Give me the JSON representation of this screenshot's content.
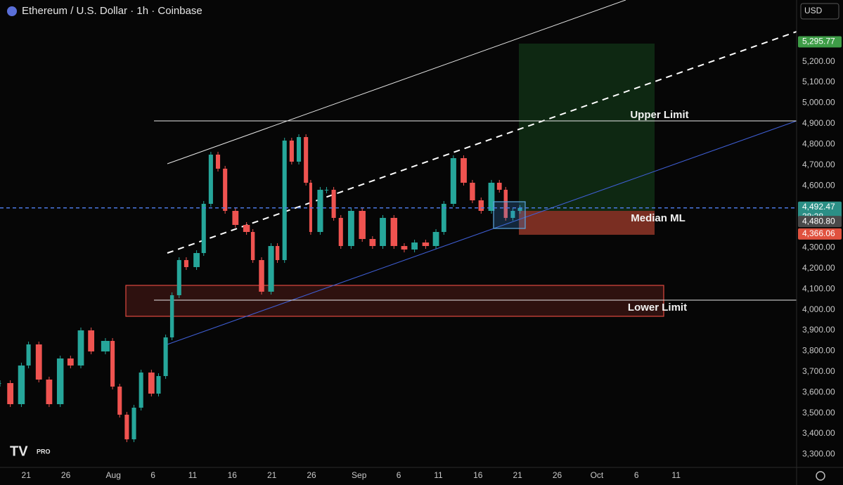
{
  "chart_data": {
    "type": "candlestick",
    "title": "Ethereum / U.S. Dollar · 1h · Coinbase",
    "currency": "USD",
    "logo_badge": "PRO",
    "x": [
      -3.3,
      -2.0,
      -0.6,
      0.3,
      1.6,
      2.9,
      4.3,
      5.6,
      6.9,
      8.2,
      10.0,
      10.9,
      11.8,
      12.7,
      13.6,
      14.5,
      15.8,
      16.7,
      17.6,
      18.4,
      19.3,
      20.2,
      21.5,
      22.4,
      23.3,
      24.2,
      25.1,
      26.4,
      27.8,
      28.6,
      29.7,
      30.9,
      31.7,
      32.6,
      33.5,
      34.4,
      35.3,
      35.9,
      37.1,
      37.9,
      38.8,
      39.7,
      41.0,
      42.4,
      43.7,
      45.0,
      46.4,
      47.7,
      49.0,
      50.4,
      51.7,
      52.7,
      53.9,
      55.2,
      56.3,
      57.4,
      58.7,
      59.7,
      60.5,
      61.4,
      62.3
    ],
    "values": [
      3645,
      3543,
      3730,
      3832,
      3662,
      3543,
      3764,
      3730,
      3900,
      3798,
      3849,
      3628,
      3492,
      3373,
      3526,
      3696,
      3594,
      3679,
      3866,
      4070,
      4240,
      4206,
      4274,
      4512,
      4750,
      4682,
      4478,
      4410,
      4376,
      4240,
      4087,
      4308,
      4240,
      4818,
      4716,
      4835,
      4614,
      4376,
      4580,
      4580,
      4444,
      4308,
      4478,
      4342,
      4308,
      4444,
      4308,
      4291,
      4325,
      4308,
      4376,
      4512,
      4733,
      4614,
      4529,
      4478,
      4614,
      4580,
      4444,
      4478,
      4492
    ],
    "up_color": "#26a69a",
    "down_color": "#ef5350",
    "xlim": [
      -3.3,
      97.2
    ],
    "xticks": [
      {
        "value": 0,
        "label": "21"
      },
      {
        "value": 5,
        "label": "26"
      },
      {
        "value": 11,
        "label": "Aug"
      },
      {
        "value": 16,
        "label": "6"
      },
      {
        "value": 21,
        "label": "11"
      },
      {
        "value": 26,
        "label": "16"
      },
      {
        "value": 31,
        "label": "21"
      },
      {
        "value": 36,
        "label": "26"
      },
      {
        "value": 42,
        "label": "Sep"
      },
      {
        "value": 47,
        "label": "6"
      },
      {
        "value": 52,
        "label": "11"
      },
      {
        "value": 57,
        "label": "16"
      },
      {
        "value": 62,
        "label": "21"
      },
      {
        "value": 67,
        "label": "26"
      },
      {
        "value": 72,
        "label": "Oct"
      },
      {
        "value": 77,
        "label": "6"
      },
      {
        "value": 82,
        "label": "11"
      }
    ],
    "ylim": [
      3237,
      5498
    ],
    "yticks": [
      {
        "value": 3300,
        "label": "3,300.00"
      },
      {
        "value": 3400,
        "label": "3,400.00"
      },
      {
        "value": 3500,
        "label": "3,500.00"
      },
      {
        "value": 3600,
        "label": "3,600.00"
      },
      {
        "value": 3700,
        "label": "3,700.00"
      },
      {
        "value": 3800,
        "label": "3,800.00"
      },
      {
        "value": 3900,
        "label": "3,900.00"
      },
      {
        "value": 4000,
        "label": "4,000.00"
      },
      {
        "value": 4100,
        "label": "4,100.00"
      },
      {
        "value": 4200,
        "label": "4,200.00"
      },
      {
        "value": 4300,
        "label": "4,300.00"
      },
      {
        "value": 4600,
        "label": "4,600.00"
      },
      {
        "value": 4700,
        "label": "4,700.00"
      },
      {
        "value": 4800,
        "label": "4,800.00"
      },
      {
        "value": 4900,
        "label": "4,900.00"
      },
      {
        "value": 5000,
        "label": "5,000.00"
      },
      {
        "value": 5100,
        "label": "5,100.00"
      },
      {
        "value": 5200,
        "label": "5,200.00"
      }
    ],
    "price_labels": [
      {
        "value": 5295.77,
        "label": "5,295.77",
        "color": "#3e9d47"
      },
      {
        "value": 4492.47,
        "label": "4,492.47",
        "color": "#2b8f86"
      },
      {
        "value": 4480.8,
        "label": "4,480.80",
        "color": "#4a4a4a"
      },
      {
        "value": 4366.06,
        "label": "4,366.06",
        "color": "#e0523f"
      }
    ],
    "countdown": "38:28",
    "annotations": [
      "Upper Limit",
      "Median ML",
      "Lower Limit"
    ]
  }
}
